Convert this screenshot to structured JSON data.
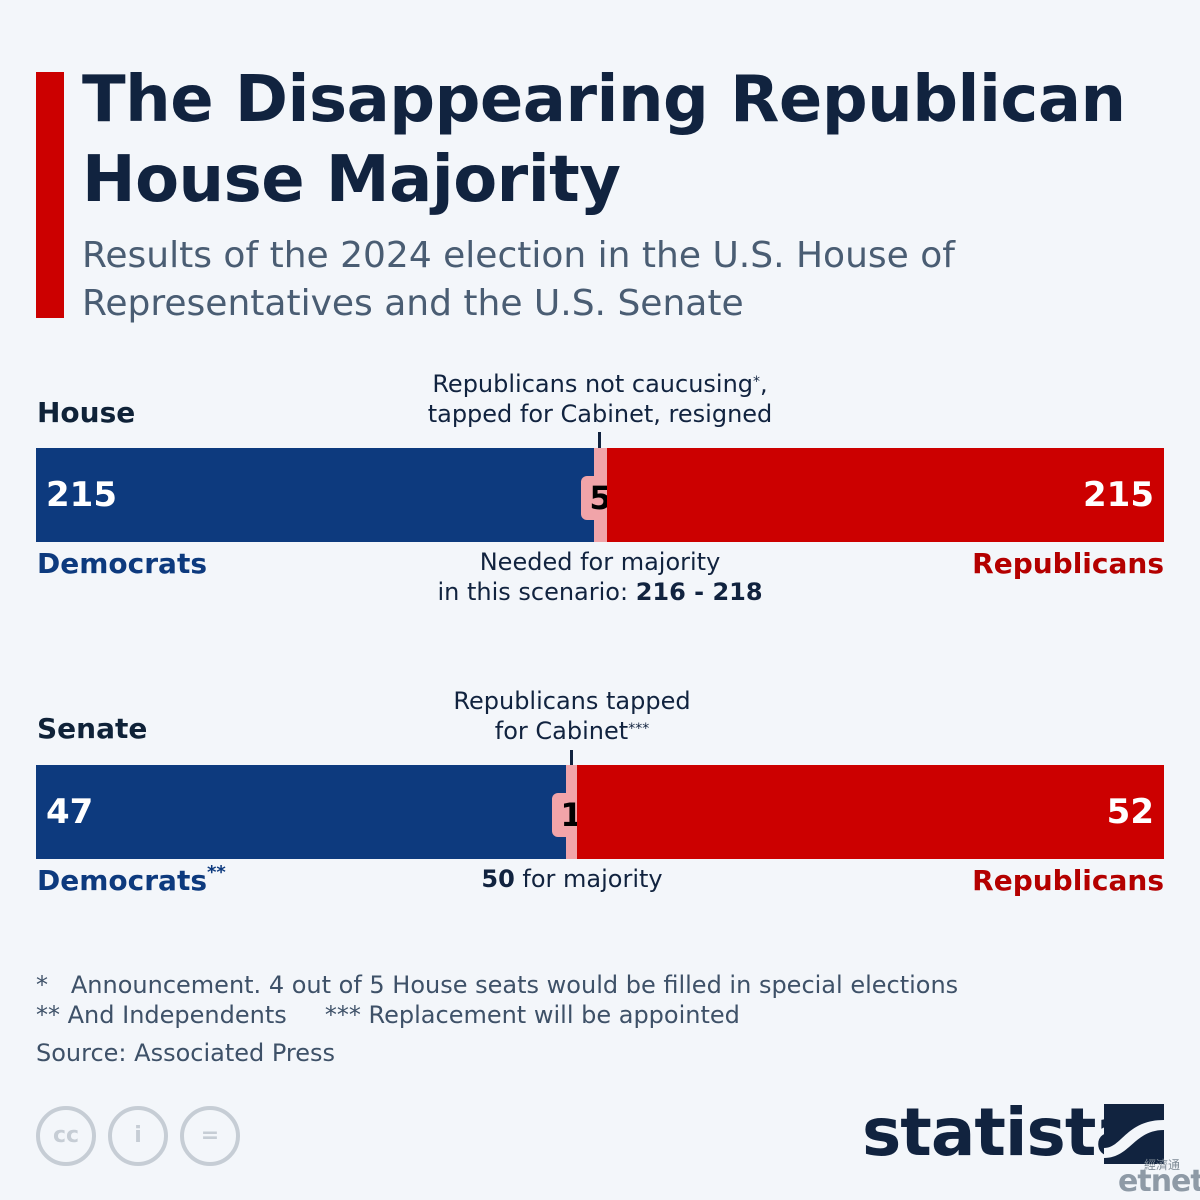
{
  "title": "The Disappearing Republican House Majority",
  "subtitle": "Results of the 2024 election in the U.S. House of Representatives and the U.S. Senate",
  "colors": {
    "accent": "#cc0000",
    "democrats": "#0d3a7e",
    "republicans": "#cc0000",
    "unavailable": "#f1a4a9"
  },
  "chart_data": [
    {
      "type": "bar",
      "orientation": "horizontal-stacked",
      "label": "House",
      "series": [
        {
          "name": "Democrats",
          "value": 215
        },
        {
          "name": "",
          "value": 5
        },
        {
          "name": "Republicans",
          "value": 215
        }
      ],
      "value_labels": [
        "215",
        "5",
        "215"
      ],
      "annotation_top": "Republicans not caucusing*, tapped for Cabinet, resigned",
      "annotation_top_line1": "Republicans not caucusing",
      "annotation_top_sup": "*",
      "annotation_top_line1_end": ",",
      "annotation_top_line2": "tapped for Cabinet, resigned",
      "annotation_bottom_line1": "Needed for majority",
      "annotation_bottom_line2_prefix": "in this scenario: ",
      "annotation_bottom_line2_bold": "216 - 218",
      "left_label": "Democrats",
      "left_label_sup": "",
      "right_label": "Republicans"
    },
    {
      "type": "bar",
      "orientation": "horizontal-stacked",
      "label": "Senate",
      "series": [
        {
          "name": "Democrats**",
          "value": 47
        },
        {
          "name": "",
          "value": 1
        },
        {
          "name": "Republicans",
          "value": 52
        }
      ],
      "value_labels": [
        "47",
        "1",
        "52"
      ],
      "annotation_top_line1": "Republicans tapped",
      "annotation_top_line2": "for Cabinet",
      "annotation_top_sup": "***",
      "annotation_bottom_bold": "50",
      "annotation_bottom_text": " for majority",
      "left_label": "Democrats",
      "left_label_sup": "**",
      "right_label": "Republicans"
    }
  ],
  "footnotes": {
    "note1": "*   Announcement. 4 out of 5 House seats would be filled in special elections",
    "note2": "** And Independents     *** Replacement will be appointed",
    "source": "Source: Associated Press"
  },
  "license_icons": [
    "cc-icon",
    "attribution-icon",
    "no-derivatives-icon"
  ],
  "license_glyphs": [
    "cc",
    "i",
    "="
  ],
  "logo": "statista",
  "corner_brand": {
    "zh": "經濟通",
    "name": "etnet"
  }
}
